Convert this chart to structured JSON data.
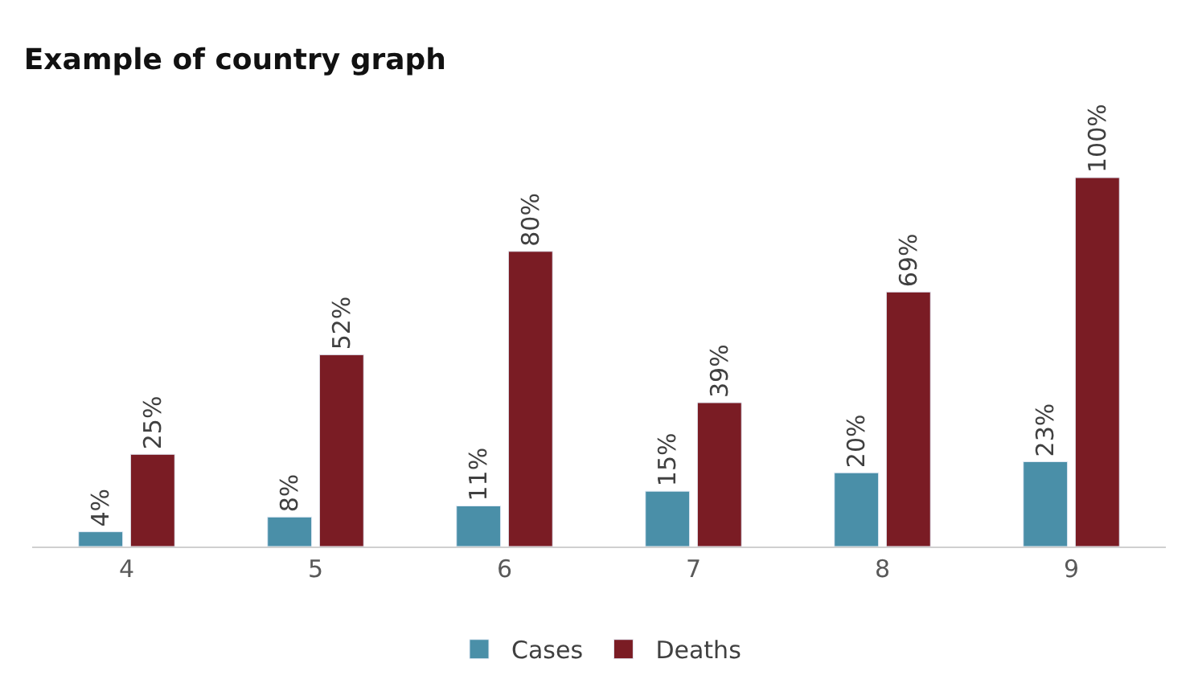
{
  "chart_data": {
    "type": "bar",
    "title": "Example of country graph",
    "categories": [
      "4",
      "5",
      "6",
      "7",
      "8",
      "9"
    ],
    "series": [
      {
        "name": "Cases",
        "color": "#4a8fa8",
        "values": [
          4,
          8,
          11,
          15,
          20,
          23
        ],
        "value_labels": [
          "4%",
          "8%",
          "11%",
          "15%",
          "20%",
          "23%"
        ]
      },
      {
        "name": "Deaths",
        "color": "#7a1c24",
        "values": [
          25,
          52,
          80,
          39,
          69,
          100
        ],
        "value_labels": [
          "25%",
          "52%",
          "80%",
          "39%",
          "69%",
          "100%"
        ]
      }
    ],
    "legend": "bottom"
  }
}
